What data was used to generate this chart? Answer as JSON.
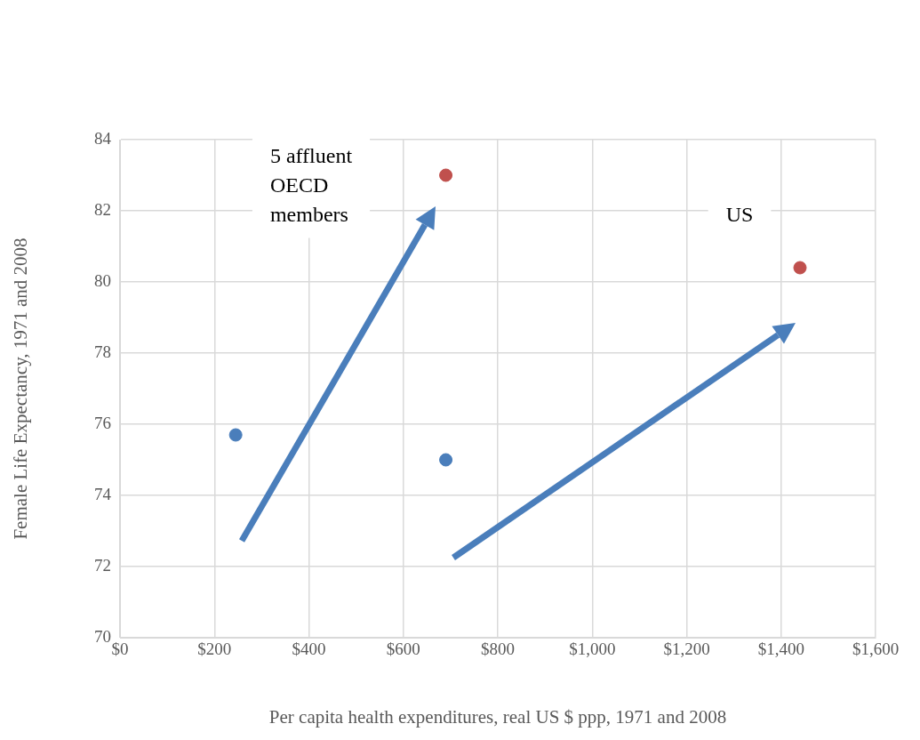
{
  "chart_data": {
    "type": "scatter",
    "xlabel": "Per capita health expenditures, real US $ ppp, 1971 and 2008",
    "ylabel": "Female Life Expectancy, 1971 and 2008",
    "series": [
      {
        "color": "#4a7ebb",
        "x": [
          245,
          690
        ],
        "values": [
          75.7,
          75.0
        ]
      },
      {
        "color": "#c0504d",
        "x": [
          690,
          1440
        ],
        "values": [
          83.0,
          80.4
        ]
      }
    ],
    "xlim": [
      0,
      1600
    ],
    "xticks": [
      {
        "value": 0,
        "label": "$0"
      },
      {
        "value": 200,
        "label": "$200"
      },
      {
        "value": 400,
        "label": "$400"
      },
      {
        "value": 600,
        "label": "$600"
      },
      {
        "value": 800,
        "label": "$800"
      },
      {
        "value": 1000,
        "label": "$1,000"
      },
      {
        "value": 1200,
        "label": "$1,200"
      },
      {
        "value": 1400,
        "label": "$1,400"
      },
      {
        "value": 1600,
        "label": "$1,600"
      }
    ],
    "ylim": [
      70,
      84
    ],
    "yticks": [
      70,
      72,
      74,
      76,
      78,
      80,
      82,
      84
    ],
    "grid": true,
    "marker": "circle",
    "legend": false,
    "annotations": [
      "5 affluent OECD members",
      "US"
    ]
  }
}
